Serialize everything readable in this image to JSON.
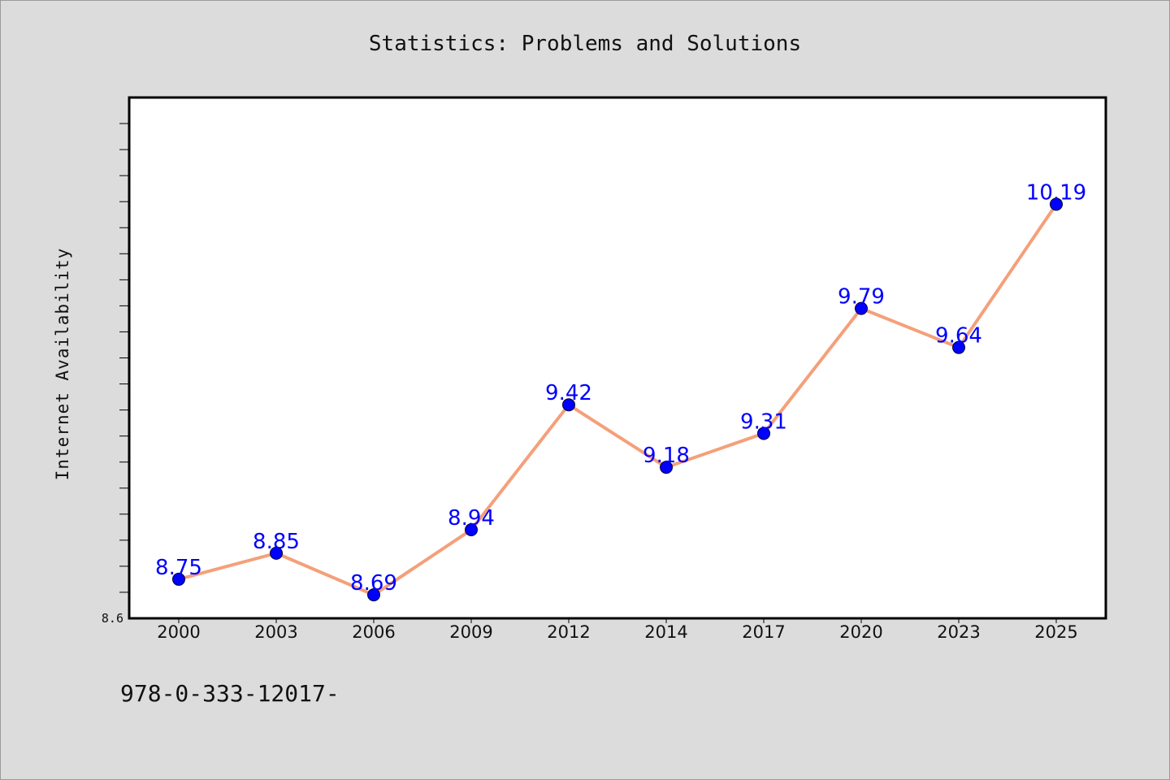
{
  "chart_data": {
    "type": "line",
    "title": "Statistics: Problems and Solutions",
    "xlabel": "",
    "ylabel": "Internet Availability",
    "categories": [
      "2000",
      "2003",
      "2006",
      "2009",
      "2012",
      "2014",
      "2017",
      "2020",
      "2023",
      "2025"
    ],
    "series": [
      {
        "values": [
          8.75,
          8.85,
          8.69,
          8.94,
          9.42,
          9.18,
          9.31,
          9.79,
          9.64,
          10.19
        ],
        "line_color": "#f4a07a",
        "marker_color": "#0000ff",
        "label_color": "#0000ff"
      }
    ],
    "data_labels": [
      "8.75",
      "8.85",
      "8.69",
      "8.94",
      "9.42",
      "9.18",
      "9.31",
      "9.79",
      "9.64",
      "10.19"
    ],
    "ylim": [
      8.6,
      10.6
    ],
    "yticks_labeled": [
      "8.6"
    ],
    "grid": false,
    "legend": "none"
  },
  "footer": {
    "isbn": "978-0-333-12017-"
  },
  "colors": {
    "background": "#dcdcdc",
    "plot_background": "#ffffff",
    "line": "#f4a07a",
    "marker": "#0000ff",
    "label": "#0000ff"
  }
}
